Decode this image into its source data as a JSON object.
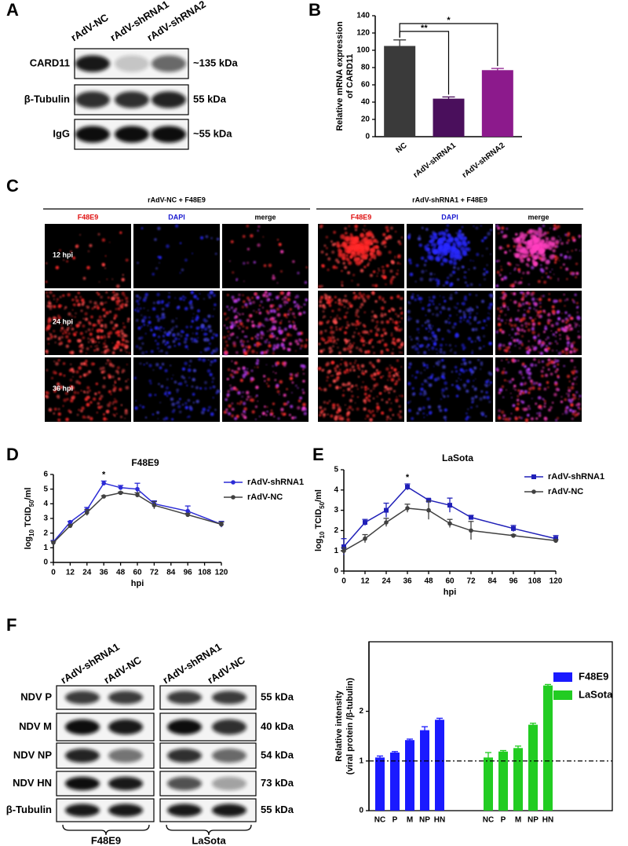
{
  "panel_labels": [
    "A",
    "B",
    "C",
    "D",
    "E",
    "F"
  ],
  "blot_a": {
    "lanes": [
      "rAdV-NC",
      "rAdV-shRNA1",
      "rAdV-shRNA2"
    ],
    "rows": [
      {
        "name": "CARD11",
        "size": "~135 kDa"
      },
      {
        "name": "β-Tubulin",
        "size": "55 kDa"
      },
      {
        "name": "IgG",
        "size": "~55 kDa"
      }
    ]
  },
  "panel_c": {
    "groups": [
      "rAdV-NC + F48E9",
      "rAdV-shRNA1 + F48E9"
    ],
    "channels": [
      "F48E9",
      "DAPI",
      "merge"
    ],
    "times": [
      "12 hpi",
      "24 hpi",
      "36 hpi"
    ]
  },
  "blot_f": {
    "lanes": [
      "rAdV-shRNA1",
      "rAdV-NC",
      "rAdV-shRNA1",
      "rAdV-NC"
    ],
    "groups": [
      "F48E9",
      "LaSota"
    ],
    "rows": [
      {
        "name": "NDV P",
        "size": "55 kDa"
      },
      {
        "name": "NDV M",
        "size": "40 kDa"
      },
      {
        "name": "NDV NP",
        "size": "54 kDa"
      },
      {
        "name": "NDV HN",
        "size": "73 kDa"
      },
      {
        "name": "β-Tubulin",
        "size": "55 kDa"
      }
    ]
  },
  "chart_data": [
    {
      "type": "bar",
      "y_label": [
        "Relative mRNA expression",
        "of CARD11"
      ],
      "categories": [
        "NC",
        "rAdV-shRNA1",
        "rAdV-shRNA2"
      ],
      "values": [
        105,
        44,
        77
      ],
      "errors": [
        7,
        2,
        2
      ],
      "colors": [
        "#3a3a3a",
        "#4a0f5c",
        "#8c1a8c"
      ],
      "ylim": [
        0,
        140
      ],
      "yticks": [
        0,
        20,
        40,
        60,
        80,
        100,
        120,
        140
      ],
      "annotations": [
        "**",
        "*"
      ]
    },
    {
      "type": "line",
      "title": "F48E9",
      "x_label": "hpi",
      "y_label": [
        "log",
        "10",
        " TCID",
        "50",
        "/ml"
      ],
      "x": [
        0,
        12,
        24,
        36,
        48,
        60,
        72,
        96,
        120
      ],
      "xlim": [
        0,
        120
      ],
      "xticks": [
        0,
        12,
        24,
        36,
        48,
        60,
        72,
        84,
        96,
        108,
        120
      ],
      "ylim": [
        0,
        6
      ],
      "yticks": [
        0,
        1,
        2,
        3,
        4,
        5,
        6
      ],
      "annotations": [
        "*"
      ],
      "legend": "upper right",
      "series": [
        {
          "name": "rAdV-shRNA1",
          "color": "#2b2bd6",
          "marker": "circle",
          "values": [
            1.4,
            2.75,
            3.6,
            5.4,
            5.1,
            5.0,
            4.0,
            3.5,
            2.6
          ],
          "errors": [
            0.1,
            0.05,
            0.15,
            0.15,
            0.15,
            0.4,
            0.2,
            0.35,
            0.2
          ]
        },
        {
          "name": "rAdV-NC",
          "color": "#404040",
          "marker": "circle",
          "values": [
            1.35,
            2.5,
            3.4,
            4.5,
            4.75,
            4.6,
            3.9,
            3.25,
            2.6
          ],
          "errors": [
            0.1,
            0.05,
            0.2,
            0.05,
            0.05,
            0.15,
            0.25,
            0.1,
            0.15
          ]
        }
      ]
    },
    {
      "type": "line",
      "title": "LaSota",
      "x_label": "hpi",
      "y_label": [
        "log",
        "10",
        " TCID",
        "50",
        "/ml"
      ],
      "x": [
        0,
        12,
        24,
        36,
        48,
        60,
        72,
        96,
        120
      ],
      "xlim": [
        0,
        120
      ],
      "xticks": [
        0,
        12,
        24,
        36,
        48,
        60,
        72,
        84,
        96,
        108,
        120
      ],
      "ylim": [
        0,
        5
      ],
      "yticks": [
        0,
        1,
        2,
        3,
        4,
        5
      ],
      "annotations": [
        "*"
      ],
      "legend": "upper right",
      "series": [
        {
          "name": "rAdV-shRNA1",
          "color": "#2020b8",
          "marker": "square",
          "values": [
            1.2,
            2.4,
            3.0,
            4.15,
            3.5,
            3.25,
            2.65,
            2.1,
            1.6
          ],
          "errors": [
            0.4,
            0.15,
            0.35,
            0.15,
            0.05,
            0.35,
            0.1,
            0.15,
            0.15
          ]
        },
        {
          "name": "rAdV-NC",
          "color": "#404040",
          "marker": "circle",
          "values": [
            1.0,
            1.6,
            2.4,
            3.1,
            3.0,
            2.35,
            2.0,
            1.75,
            1.5
          ],
          "errors": [
            0.15,
            0.2,
            0.2,
            0.2,
            0.45,
            0.2,
            0.45,
            0.05,
            0.05
          ]
        }
      ]
    },
    {
      "type": "bar",
      "y_label": [
        "Relative intensity",
        "(viral protein /β-tubulin)"
      ],
      "categories": [
        "NC",
        "P",
        "M",
        "NP",
        "HN"
      ],
      "ylim": [
        0,
        3.4
      ],
      "yticks": [
        0,
        1,
        2
      ],
      "reference_line": 1,
      "legend": "upper right",
      "series": [
        {
          "name": "F48E9",
          "color": "#1a1aff",
          "values": [
            1.07,
            1.17,
            1.42,
            1.62,
            1.83
          ],
          "errors": [
            0.03,
            0.02,
            0.02,
            0.07,
            0.03
          ]
        },
        {
          "name": "LaSota",
          "color": "#22cc22",
          "values": [
            1.07,
            1.19,
            1.26,
            1.73,
            2.52
          ],
          "errors": [
            0.1,
            0.02,
            0.04,
            0.03,
            0.02
          ]
        }
      ]
    }
  ]
}
